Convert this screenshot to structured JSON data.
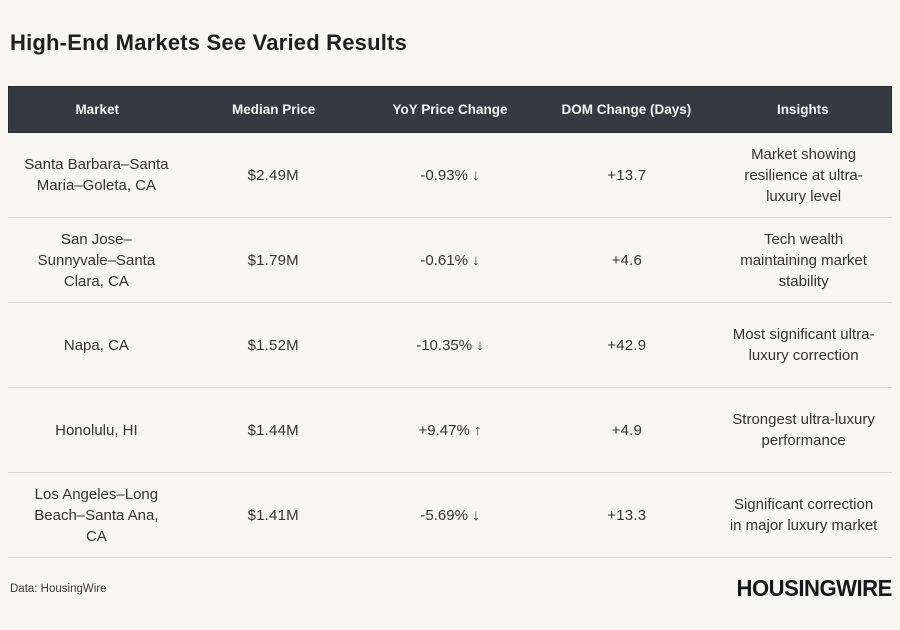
{
  "page": {
    "title": "High-End Markets See Varied Results",
    "source": "Data: HousingWire",
    "logo": "HOUSINGWIRE"
  },
  "colors": {
    "background": "#f7f6f0",
    "header_bg": "#333a41",
    "header_text": "#f5f4ef",
    "body_text": "#34332f",
    "row_divider": "#d9d8d0"
  },
  "table": {
    "columns": [
      "Market",
      "Median Price",
      "YoY Price Change",
      "DOM Change (Days)",
      "Insights"
    ],
    "rows": [
      {
        "market": "Santa Barbara–Santa Maria–Goleta, CA",
        "median_price": "$2.49M",
        "yoy_change": "-0.93% ↓",
        "dom_change": "+13.7",
        "insight": "Market showing resilience at ultra-luxury level"
      },
      {
        "market": "San Jose–Sunnyvale–Santa Clara, CA",
        "median_price": "$1.79M",
        "yoy_change": "-0.61% ↓",
        "dom_change": "+4.6",
        "insight": "Tech wealth maintaining market stability"
      },
      {
        "market": "Napa, CA",
        "median_price": "$1.52M",
        "yoy_change": "-10.35% ↓",
        "dom_change": "+42.9",
        "insight": "Most significant ultra-luxury correction"
      },
      {
        "market": "Honolulu, HI",
        "median_price": "$1.44M",
        "yoy_change": "+9.47% ↑",
        "dom_change": "+4.9",
        "insight": "Strongest ultra-luxury performance"
      },
      {
        "market": "Los Angeles–Long Beach–Santa Ana, CA",
        "median_price": "$1.41M",
        "yoy_change": "-5.69% ↓",
        "dom_change": "+13.3",
        "insight": "Significant correction in major luxury market"
      }
    ]
  }
}
